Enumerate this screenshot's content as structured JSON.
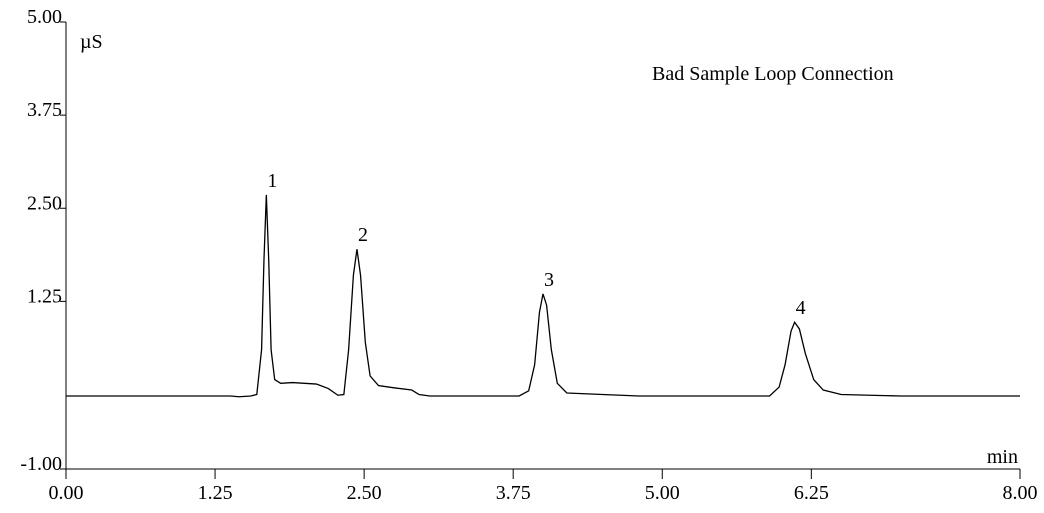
{
  "chart_data": {
    "type": "line",
    "annotation": "Bad Sample Loop Connection",
    "y_label": "µS",
    "x_label": "min",
    "x": [
      0,
      1.0,
      1.38,
      1.45,
      1.55,
      1.6,
      1.64,
      1.66,
      1.68,
      1.7,
      1.72,
      1.75,
      1.8,
      1.9,
      2.0,
      2.1,
      2.2,
      2.28,
      2.33,
      2.37,
      2.41,
      2.44,
      2.47,
      2.51,
      2.55,
      2.62,
      2.75,
      2.9,
      2.96,
      3.05,
      3.8,
      3.88,
      3.93,
      3.97,
      4.0,
      4.03,
      4.07,
      4.12,
      4.2,
      4.5,
      4.8,
      5.9,
      5.98,
      6.03,
      6.08,
      6.11,
      6.15,
      6.2,
      6.27,
      6.35,
      6.5,
      7.0,
      8.0
    ],
    "series": [
      {
        "color": "#000000",
        "values": [
          -0.02,
          -0.02,
          -0.02,
          -0.03,
          -0.02,
          0.0,
          0.6,
          1.8,
          2.68,
          1.8,
          0.6,
          0.2,
          0.15,
          0.16,
          0.15,
          0.14,
          0.08,
          -0.01,
          0.0,
          0.6,
          1.6,
          1.95,
          1.6,
          0.7,
          0.25,
          0.12,
          0.09,
          0.06,
          0.0,
          -0.02,
          -0.02,
          0.05,
          0.4,
          1.1,
          1.35,
          1.2,
          0.6,
          0.15,
          0.02,
          0.0,
          -0.02,
          -0.02,
          0.1,
          0.4,
          0.85,
          0.97,
          0.88,
          0.55,
          0.2,
          0.06,
          0.0,
          -0.02,
          -0.02
        ]
      }
    ],
    "peaks": [
      {
        "text": "1",
        "x": 1.68,
        "y": 2.68
      },
      {
        "text": "2",
        "x": 2.44,
        "y": 1.95
      },
      {
        "text": "3",
        "x": 4.0,
        "y": 1.35
      },
      {
        "text": "4",
        "x": 6.11,
        "y": 0.97
      }
    ],
    "xlim": [
      0,
      8
    ],
    "ylim": [
      -1,
      5
    ],
    "xticks": [
      {
        "value": 0,
        "label": "0.00"
      },
      {
        "value": 1.25,
        "label": "1.25"
      },
      {
        "value": 2.5,
        "label": "2.50"
      },
      {
        "value": 3.75,
        "label": "3.75"
      },
      {
        "value": 5,
        "label": "5.00"
      },
      {
        "value": 6.25,
        "label": "6.25"
      },
      {
        "value": 8,
        "label": "8.00"
      }
    ],
    "yticks": [
      {
        "value": -1,
        "label": "-1.00"
      },
      {
        "value": 1.25,
        "label": "1.25"
      },
      {
        "value": 2.5,
        "label": "2.50"
      },
      {
        "value": 3.75,
        "label": "3.75"
      },
      {
        "value": 5,
        "label": "5.00"
      }
    ]
  }
}
